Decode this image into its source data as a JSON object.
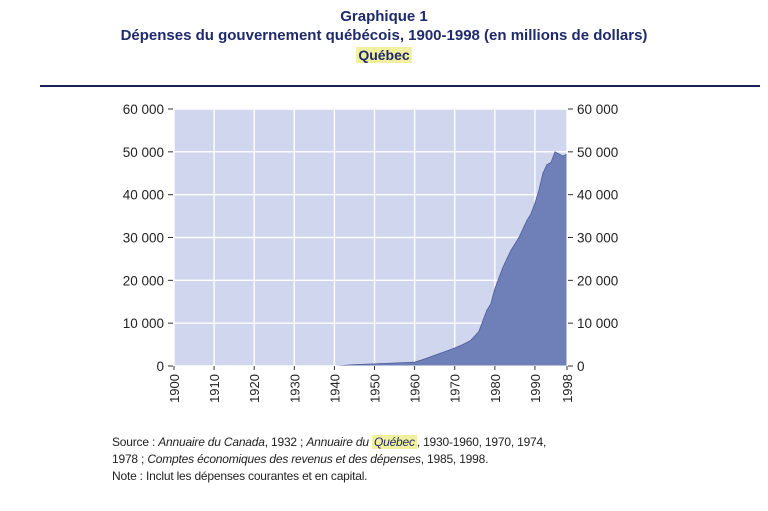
{
  "header": {
    "label": "Graphique 1",
    "title": "Dépenses du gouvernement québécois, 1900-1998 (en millions de dollars)",
    "region": "Québec"
  },
  "chart_data": {
    "type": "area",
    "xlabel": "",
    "ylabel": "",
    "xlim": [
      1900,
      1998
    ],
    "ylim": [
      0,
      60000
    ],
    "x_ticks": [
      "1900",
      "1910",
      "1920",
      "1930",
      "1940",
      "1950",
      "1960",
      "1970",
      "1980",
      "1990",
      "1998"
    ],
    "x_tick_values": [
      1900,
      1910,
      1920,
      1930,
      1940,
      1950,
      1960,
      1970,
      1980,
      1990,
      1998
    ],
    "y_ticks_left": [
      "60 000",
      "50 000",
      "40 000",
      "30 000",
      "20 000",
      "10 000",
      "0"
    ],
    "y_ticks_right": [
      "60 000",
      "50 000",
      "40 000",
      "30 000",
      "20 000",
      "10 000",
      "0"
    ],
    "y_tick_values": [
      60000,
      50000,
      40000,
      30000,
      20000,
      10000,
      0
    ],
    "grid": true,
    "colors": {
      "plot_bg": "#cfd6ee",
      "area": "#6f7fb8",
      "area_edge": "#4d5c98",
      "grid": "#ffffff"
    },
    "series": [
      {
        "x": [
          1900,
          1910,
          1920,
          1930,
          1940,
          1945,
          1950,
          1955,
          1960,
          1962,
          1965,
          1968,
          1970,
          1972,
          1974,
          1976,
          1978,
          1979,
          1980,
          1981,
          1982,
          1983,
          1984,
          1985,
          1986,
          1987,
          1988,
          1989,
          1990,
          1991,
          1992,
          1993,
          1994,
          1995,
          1996,
          1997,
          1998
        ],
        "values": [
          0,
          0,
          0,
          0,
          0,
          300,
          500,
          700,
          900,
          1500,
          2500,
          3500,
          4200,
          5000,
          6000,
          8000,
          13000,
          14500,
          18000,
          20500,
          23000,
          25000,
          27000,
          28500,
          30000,
          32000,
          34000,
          35500,
          38000,
          41000,
          45000,
          47000,
          47500,
          50000,
          49500,
          49000,
          49500
        ]
      }
    ]
  },
  "source": {
    "src_label": "Source :",
    "src1": "Annuaire du Canada",
    "src2": ", 1932 ; ",
    "src3": "Annuaire du ",
    "src4": "Québec",
    "src5": ", 1930-1960, 1970, 1974,",
    "src6": "1978 ; ",
    "src7": "Comptes économiques des revenus et des dépenses",
    "src8": ", 1985, 1998.",
    "note_label": "Note :",
    "note": "Inclut les dépenses courantes et en capital."
  }
}
